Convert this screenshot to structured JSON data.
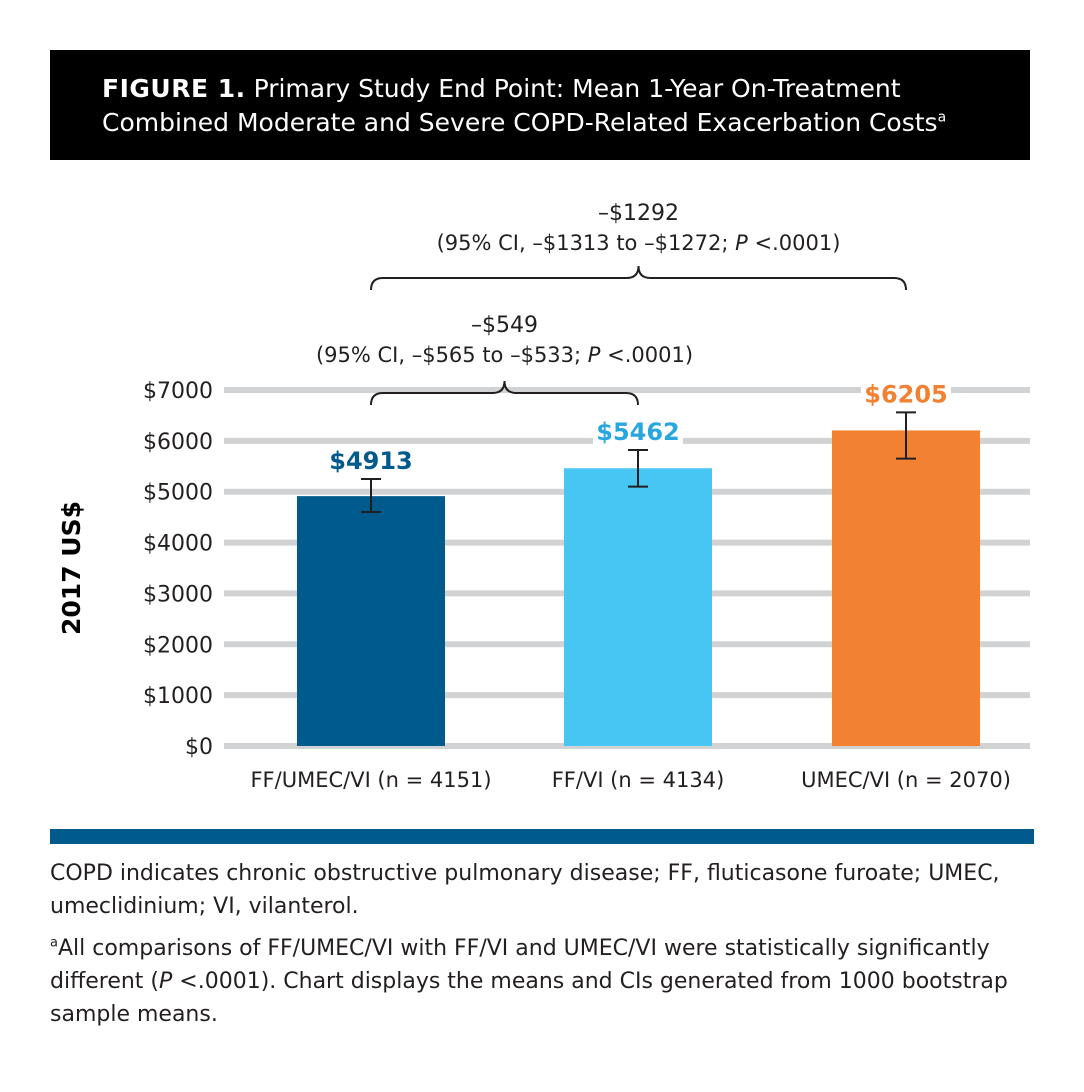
{
  "figure": {
    "label": "FIGURE 1.",
    "title_line1": " Primary Study End Point: Mean 1-Year On-Treatment",
    "title_line2": "Combined Moderate and Severe COPD-Related Exacerbation Costs",
    "title_sup": "a"
  },
  "chart_data": {
    "type": "bar",
    "ylabel": "2017 US$",
    "ylim": [
      0,
      7000
    ],
    "yticks": [
      0,
      1000,
      2000,
      3000,
      4000,
      5000,
      6000,
      7000
    ],
    "ytick_labels": [
      "$0",
      "$1000",
      "$2000",
      "$3000",
      "$4000",
      "$5000",
      "$6000",
      "$7000"
    ],
    "grid": true,
    "categories": [
      "FF/UMEC/VI (n = 4151)",
      "FF/VI (n = 4134)",
      "UMEC/VI (n = 2070)"
    ],
    "values": [
      4913,
      5462,
      6205
    ],
    "value_labels": [
      "$4913",
      "$5462",
      "$6205"
    ],
    "error_low": [
      4600,
      5100,
      5650
    ],
    "error_high": [
      5250,
      5820,
      6560
    ],
    "colors": [
      "#005a8c",
      "#47c6f4",
      "#f28232"
    ],
    "label_colors": [
      "#005a8c",
      "#2aa6df",
      "#f28232"
    ],
    "comparisons": [
      {
        "from": 0,
        "to": 1,
        "diff": "–$549",
        "ci_prefix": "(95% CI, –$565 to –$533; ",
        "p_label": "P",
        "p_value": " <.0001)"
      },
      {
        "from": 0,
        "to": 2,
        "diff": "–$1292",
        "ci_prefix": "(95% CI, –$1313 to –$1272; ",
        "p_label": "P",
        "p_value": " <.0001)"
      }
    ]
  },
  "footnotes": {
    "abbrev": "COPD indicates chronic obstructive pulmonary disease; FF, fluticasone furoate; UMEC, umeclidinium; VI, vilanterol.",
    "sup": "a",
    "note_part1": "All comparisons of FF/UMEC/VI with FF/VI and UMEC/VI were statistically significantly different (",
    "note_p": "P",
    "note_part2": " <.0001). Chart displays the means and CIs generated from 1000 bootstrap sample means."
  },
  "colors": {
    "header_bg": "#000000",
    "rule": "#005a8c",
    "grid": "#d0d2d3"
  }
}
